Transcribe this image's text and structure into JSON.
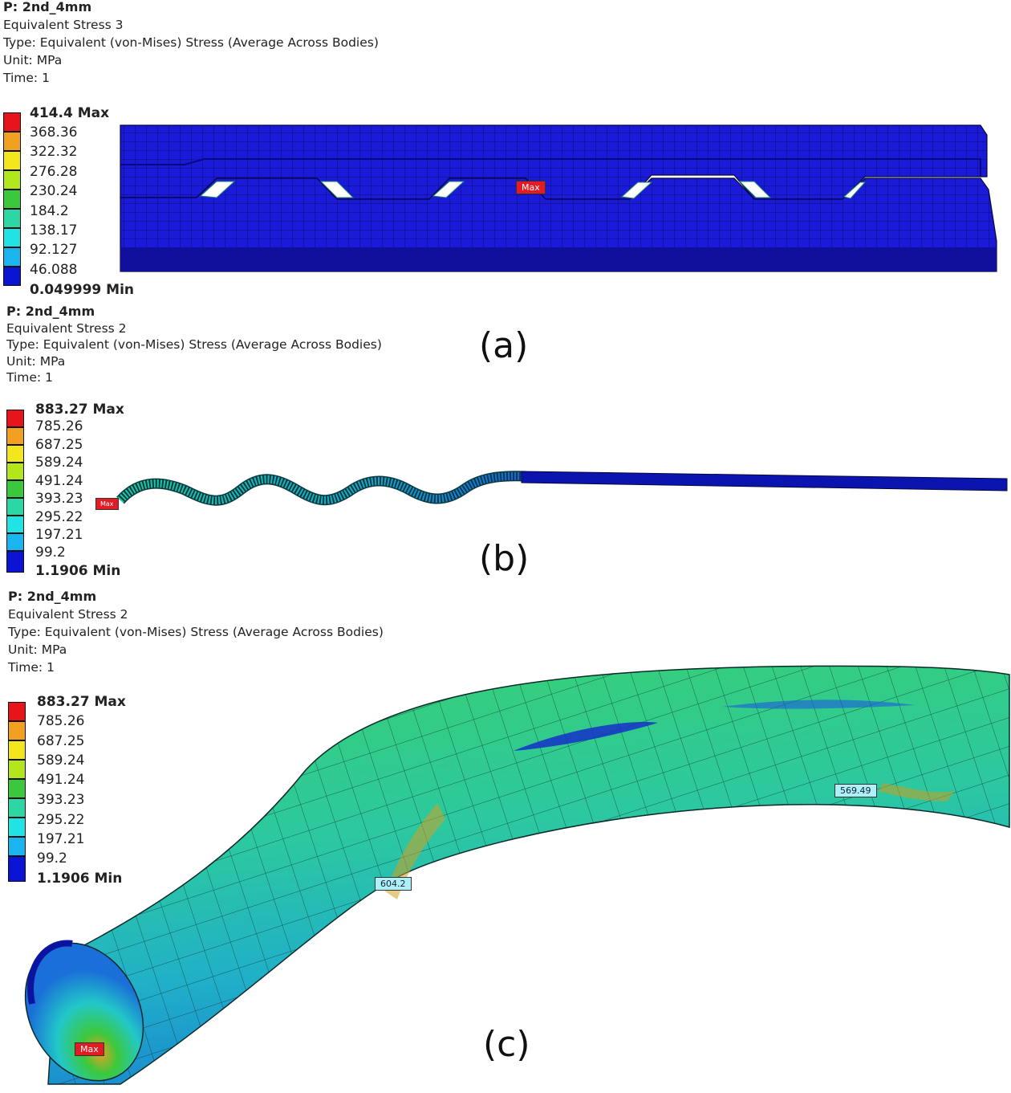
{
  "panels": [
    {
      "caption": "(a)",
      "header": {
        "title": "P: 2nd_4mm",
        "result": "Equivalent Stress 3",
        "type": "Type: Equivalent (von-Mises) Stress (Average Across Bodies)",
        "unit": "Unit: MPa",
        "time": "Time: 1"
      },
      "legend": [
        "414.4 Max",
        "368.36",
        "322.32",
        "276.28",
        "230.24",
        "184.2",
        "138.17",
        "92.127",
        "46.088",
        "0.049999 Min"
      ],
      "probes": [
        {
          "label": "Max",
          "kind": "max"
        }
      ]
    },
    {
      "caption": "(b)",
      "header": {
        "title": "P: 2nd_4mm",
        "result": "Equivalent Stress 2",
        "type": "Type: Equivalent (von-Mises) Stress (Average Across Bodies)",
        "unit": "Unit: MPa",
        "time": "Time: 1"
      },
      "legend": [
        "883.27 Max",
        "785.26",
        "687.25",
        "589.24",
        "491.24",
        "393.23",
        "295.22",
        "197.21",
        "99.2",
        "1.1906 Min"
      ],
      "probes": [
        {
          "label": "Max",
          "kind": "max"
        }
      ]
    },
    {
      "caption": "(c)",
      "header": {
        "title": "P: 2nd_4mm",
        "result": "Equivalent Stress 2",
        "type": "Type: Equivalent (von-Mises) Stress (Average Across Bodies)",
        "unit": "Unit: MPa",
        "time": "Time: 1"
      },
      "legend": [
        "883.27 Max",
        "785.26",
        "687.25",
        "589.24",
        "491.24",
        "393.23",
        "295.22",
        "197.21",
        "99.2",
        "1.1906 Min"
      ],
      "probes": [
        {
          "label": "604.2",
          "kind": "value"
        },
        {
          "label": "569.49",
          "kind": "value"
        },
        {
          "label": "Max",
          "kind": "max"
        }
      ]
    }
  ],
  "colormap": [
    "#e8141c",
    "#f2a020",
    "#f4e61c",
    "#b4e61c",
    "#3cc83c",
    "#2cd7a5",
    "#22e3e3",
    "#1ab4ee",
    "#1464e6",
    "#0a14d2"
  ]
}
